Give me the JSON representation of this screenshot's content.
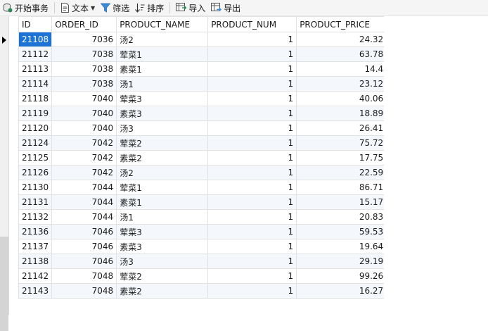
{
  "toolbar": {
    "begin_transaction": "开始事务",
    "text": "文本",
    "filter": "筛选",
    "sort": "排序",
    "import": "导入",
    "export": "导出"
  },
  "columns": [
    "ID",
    "ORDER_ID",
    "PRODUCT_NAME",
    "PRODUCT_NUM",
    "PRODUCT_PRICE"
  ],
  "rows": [
    [
      "21108",
      "7036",
      "汤2",
      "1",
      "24.32"
    ],
    [
      "21112",
      "7038",
      "荤菜1",
      "1",
      "63.78"
    ],
    [
      "21113",
      "7038",
      "素菜1",
      "1",
      "14.4"
    ],
    [
      "21114",
      "7038",
      "汤1",
      "1",
      "23.12"
    ],
    [
      "21118",
      "7040",
      "荤菜3",
      "1",
      "40.06"
    ],
    [
      "21119",
      "7040",
      "素菜3",
      "1",
      "18.89"
    ],
    [
      "21120",
      "7040",
      "汤3",
      "1",
      "26.41"
    ],
    [
      "21124",
      "7042",
      "荤菜2",
      "1",
      "75.72"
    ],
    [
      "21125",
      "7042",
      "素菜2",
      "1",
      "17.75"
    ],
    [
      "21126",
      "7042",
      "汤2",
      "1",
      "22.59"
    ],
    [
      "21130",
      "7044",
      "荤菜1",
      "1",
      "86.71"
    ],
    [
      "21131",
      "7044",
      "素菜1",
      "1",
      "15.17"
    ],
    [
      "21132",
      "7044",
      "汤1",
      "1",
      "20.83"
    ],
    [
      "21136",
      "7046",
      "荤菜3",
      "1",
      "59.53"
    ],
    [
      "21137",
      "7046",
      "素菜3",
      "1",
      "19.64"
    ],
    [
      "21138",
      "7046",
      "汤3",
      "1",
      "29.19"
    ],
    [
      "21142",
      "7048",
      "荤菜2",
      "1",
      "99.26"
    ],
    [
      "21143",
      "7048",
      "素菜2",
      "1",
      "16.27"
    ]
  ],
  "colors": {
    "selection": "#1e74d6",
    "alt_row": "#f4f8fc",
    "grid_line": "#e2e2e2"
  }
}
